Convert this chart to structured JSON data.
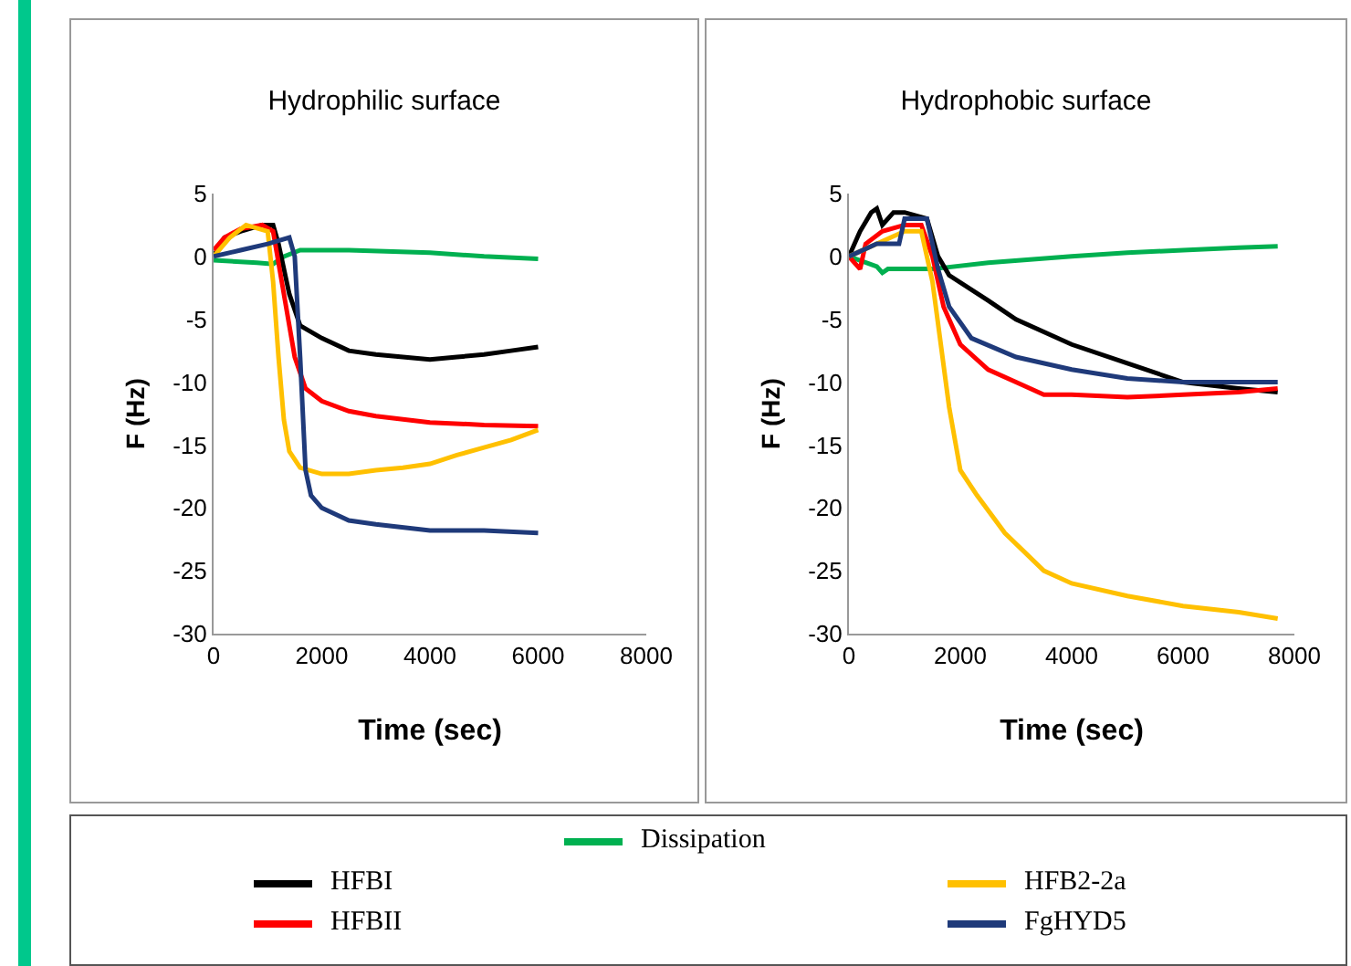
{
  "chart_data": [
    {
      "type": "line",
      "title": "Hydrophilic surface",
      "xlabel": "Time (sec)",
      "ylabel": "F (Hz)",
      "xlim": [
        0,
        8000
      ],
      "xticks": [
        0,
        2000,
        4000,
        6000,
        8000
      ],
      "ylim": [
        -30,
        5
      ],
      "yticks": [
        -30,
        -25,
        -20,
        -15,
        -10,
        -5,
        0,
        5
      ],
      "grid": false,
      "legend": "bottom",
      "marker": "none",
      "line_style": "solid",
      "series": [
        {
          "name": "Dissipation",
          "color": "#00b050",
          "x": [
            0,
            800,
            1100,
            1300,
            1600,
            2500,
            4000,
            5000,
            6000
          ],
          "values": [
            -0.3,
            -0.5,
            -0.6,
            0,
            0.5,
            0.5,
            0.3,
            0,
            -0.2
          ]
        },
        {
          "name": "HFBI",
          "color": "#000000",
          "x": [
            0,
            200,
            500,
            900,
            1100,
            1200,
            1400,
            1600,
            2000,
            2500,
            3000,
            3500,
            4000,
            4500,
            5000,
            5500,
            6000
          ],
          "values": [
            0,
            1.5,
            2,
            2.5,
            2.5,
            1,
            -3,
            -5.5,
            -6.5,
            -7.5,
            -7.8,
            -8,
            -8.2,
            -8,
            -7.8,
            -7.5,
            -7.2
          ]
        },
        {
          "name": "HFBII",
          "color": "#ff0000",
          "x": [
            0,
            200,
            500,
            900,
            1100,
            1300,
            1500,
            1700,
            2000,
            2500,
            3000,
            4000,
            5000,
            6000
          ],
          "values": [
            0.5,
            1.5,
            2.2,
            2.5,
            2,
            -3,
            -8,
            -10.5,
            -11.5,
            -12.3,
            -12.7,
            -13.2,
            -13.4,
            -13.5
          ]
        },
        {
          "name": "HFB2-2a",
          "color": "#ffc000",
          "x": [
            0,
            300,
            600,
            1000,
            1100,
            1200,
            1300,
            1400,
            1600,
            2000,
            2500,
            3000,
            3500,
            4000,
            4500,
            5000,
            5500,
            6000
          ],
          "values": [
            0,
            1.5,
            2.5,
            2,
            -2,
            -8,
            -13,
            -15.5,
            -16.8,
            -17.3,
            -17.3,
            -17,
            -16.8,
            -16.5,
            -15.8,
            -15.2,
            -14.6,
            -13.8
          ]
        },
        {
          "name": "FgHYD5",
          "color": "#1f3a7a",
          "x": [
            0,
            500,
            1000,
            1400,
            1500,
            1600,
            1700,
            1800,
            2000,
            2500,
            3000,
            4000,
            5000,
            6000
          ],
          "values": [
            0,
            0.5,
            1,
            1.5,
            0,
            -8,
            -17,
            -19,
            -20,
            -21,
            -21.3,
            -21.8,
            -21.8,
            -22
          ]
        }
      ]
    },
    {
      "type": "line",
      "title": "Hydrophobic surface",
      "xlabel": "Time (sec)",
      "ylabel": "F (Hz)",
      "xlim": [
        0,
        8000
      ],
      "xticks": [
        0,
        2000,
        4000,
        6000,
        8000
      ],
      "ylim": [
        -30,
        5
      ],
      "yticks": [
        -30,
        -25,
        -20,
        -15,
        -10,
        -5,
        0,
        5
      ],
      "grid": false,
      "legend": "bottom",
      "marker": "none",
      "line_style": "solid",
      "series": [
        {
          "name": "Dissipation",
          "color": "#00b050",
          "x": [
            0,
            500,
            600,
            700,
            1500,
            2500,
            4000,
            5000,
            6000,
            7000,
            7700
          ],
          "values": [
            0,
            -0.8,
            -1.3,
            -1,
            -1,
            -0.5,
            0,
            0.3,
            0.5,
            0.7,
            0.8
          ]
        },
        {
          "name": "HFBI",
          "color": "#000000",
          "x": [
            0,
            200,
            400,
            500,
            600,
            800,
            1000,
            1400,
            1600,
            1800,
            2500,
            3000,
            4000,
            5000,
            6000,
            7000,
            7700
          ],
          "values": [
            0,
            2,
            3.5,
            3.8,
            2.5,
            3.5,
            3.5,
            3,
            0,
            -1.5,
            -3.5,
            -5,
            -7,
            -8.5,
            -10,
            -10.5,
            -10.8
          ]
        },
        {
          "name": "HFBII",
          "color": "#ff0000",
          "x": [
            0,
            200,
            300,
            600,
            1000,
            1300,
            1500,
            1700,
            2000,
            2500,
            3000,
            3500,
            4000,
            5000,
            6000,
            7000,
            7700
          ],
          "values": [
            0,
            -1,
            1,
            2,
            2.5,
            2.5,
            0,
            -4,
            -7,
            -9,
            -10,
            -11,
            -11,
            -11.2,
            -11,
            -10.8,
            -10.5
          ]
        },
        {
          "name": "HFB2-2a",
          "color": "#ffc000",
          "x": [
            0,
            500,
            1000,
            1300,
            1500,
            1800,
            2000,
            2300,
            2800,
            3500,
            4000,
            5000,
            6000,
            7000,
            7700
          ],
          "values": [
            0,
            1,
            2,
            2,
            -2,
            -12,
            -17,
            -19,
            -22,
            -25,
            -26,
            -27,
            -27.8,
            -28.3,
            -28.8
          ]
        },
        {
          "name": "FgHYD5",
          "color": "#1f3a7a",
          "x": [
            0,
            500,
            900,
            1000,
            1400,
            1600,
            1800,
            2200,
            3000,
            4000,
            5000,
            6000,
            7000,
            7700
          ],
          "values": [
            0,
            1,
            1,
            3,
            3,
            -1,
            -4,
            -6.5,
            -8,
            -9,
            -9.7,
            -10,
            -10,
            -10
          ]
        }
      ]
    }
  ]
}
